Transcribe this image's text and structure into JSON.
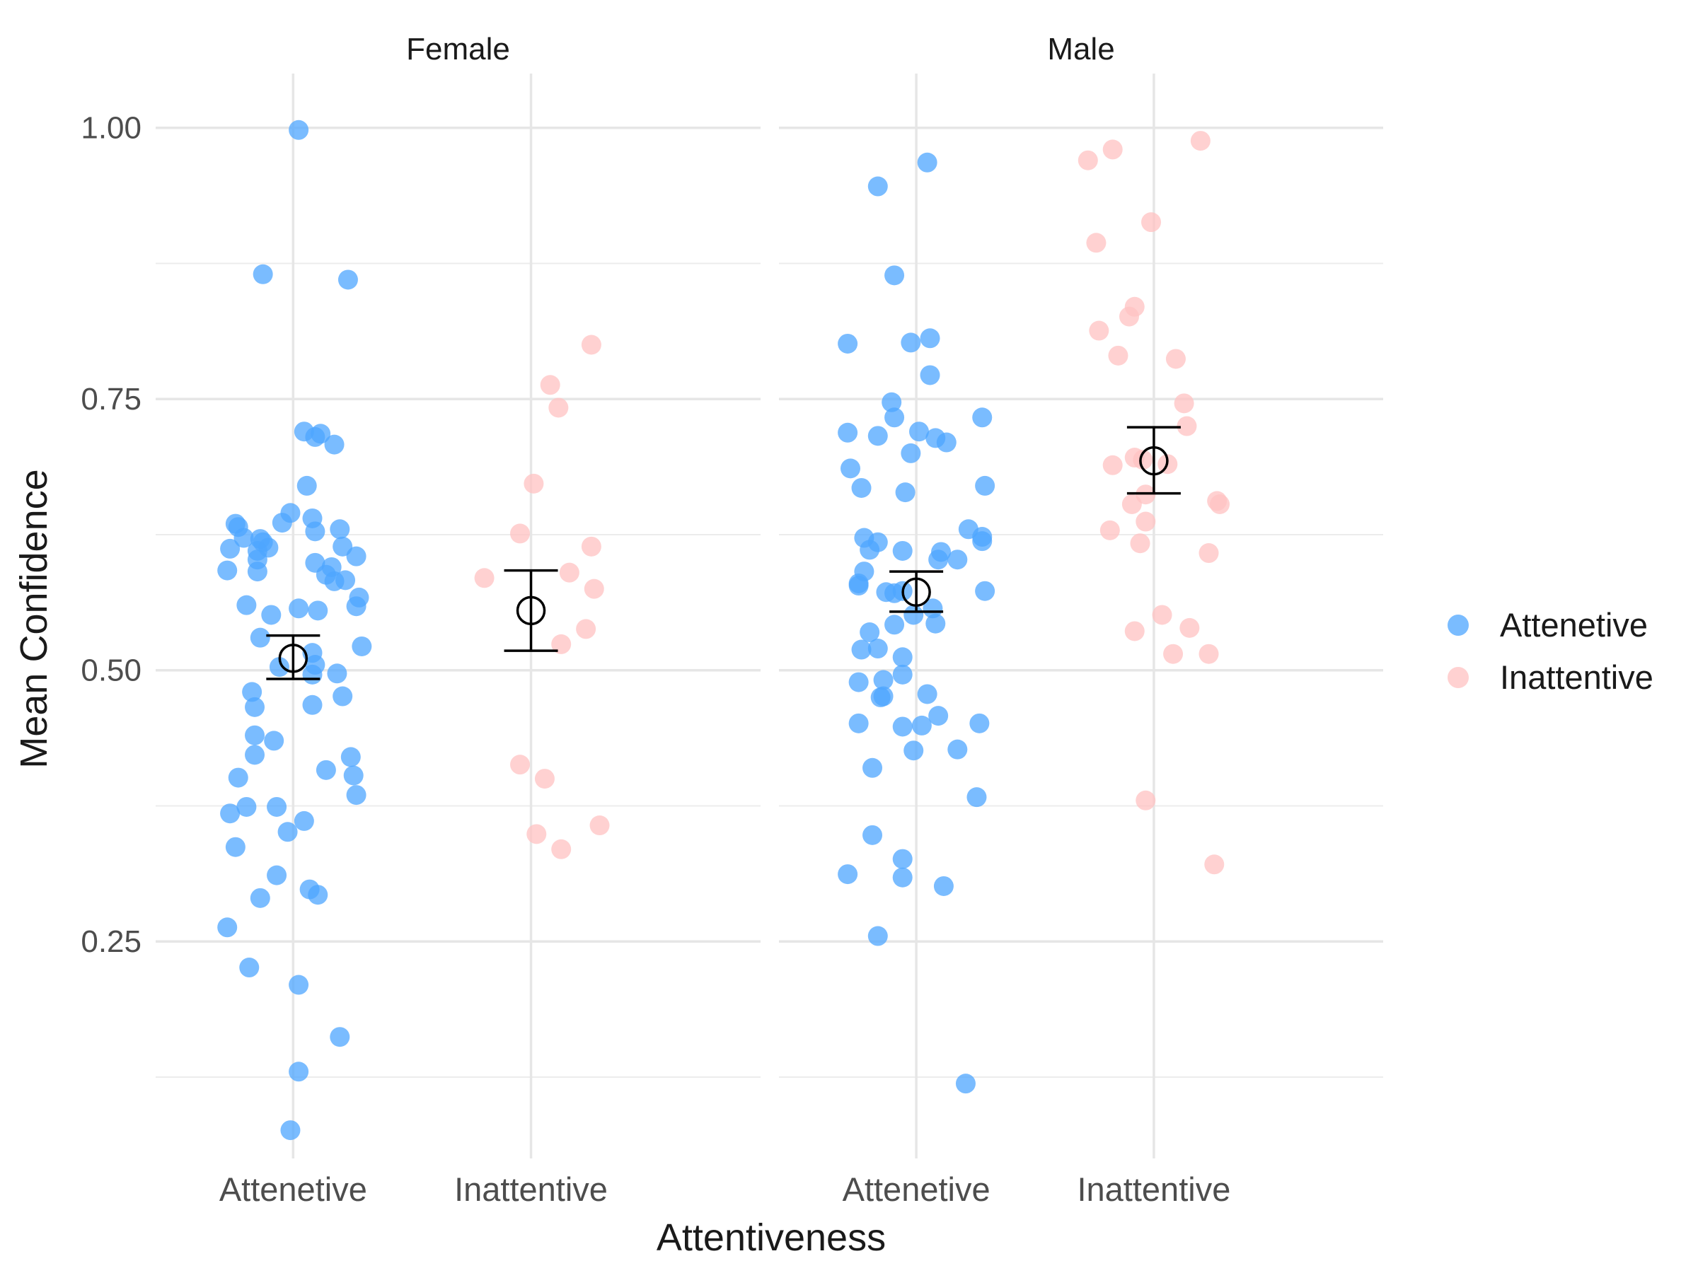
{
  "chart_data": {
    "type": "scatter",
    "xlabel": "Attentiveness",
    "ylabel": "Mean Confidence",
    "ylim": [
      0.05,
      1.05
    ],
    "yticks": [
      0.25,
      0.5,
      0.75,
      1.0
    ],
    "ytick_labels": [
      "0.25",
      "0.50",
      "0.75",
      "1.00"
    ],
    "categories": [
      "Attenetive",
      "Inattentive"
    ],
    "grid": true,
    "legend_position": "right",
    "colors": {
      "Attenetive": "#4da6ff",
      "Inattentive": "#ffc2c2"
    },
    "legend": [
      {
        "label": "Attenetive",
        "color": "#4da6ff"
      },
      {
        "label": "Inattentive",
        "color": "#ffc2c2"
      }
    ],
    "facets": [
      {
        "label": "Female",
        "groups": [
          {
            "category": "Attenetive",
            "mean": 0.511,
            "error_low": 0.492,
            "error_high": 0.532,
            "points": [
              {
                "x": 0.02,
                "y": 0.998
              },
              {
                "x": -0.11,
                "y": 0.865
              },
              {
                "x": 0.2,
                "y": 0.86
              },
              {
                "x": 0.04,
                "y": 0.72
              },
              {
                "x": 0.08,
                "y": 0.715
              },
              {
                "x": 0.1,
                "y": 0.718
              },
              {
                "x": 0.15,
                "y": 0.708
              },
              {
                "x": 0.05,
                "y": 0.67
              },
              {
                "x": -0.01,
                "y": 0.645
              },
              {
                "x": 0.07,
                "y": 0.64
              },
              {
                "x": -0.04,
                "y": 0.636
              },
              {
                "x": -0.2,
                "y": 0.632
              },
              {
                "x": -0.21,
                "y": 0.635
              },
              {
                "x": 0.17,
                "y": 0.63
              },
              {
                "x": 0.08,
                "y": 0.628
              },
              {
                "x": -0.18,
                "y": 0.622
              },
              {
                "x": -0.12,
                "y": 0.621
              },
              {
                "x": -0.11,
                "y": 0.618
              },
              {
                "x": 0.18,
                "y": 0.614
              },
              {
                "x": -0.09,
                "y": 0.613
              },
              {
                "x": -0.23,
                "y": 0.612
              },
              {
                "x": -0.13,
                "y": 0.61
              },
              {
                "x": 0.23,
                "y": 0.605
              },
              {
                "x": -0.13,
                "y": 0.602
              },
              {
                "x": 0.08,
                "y": 0.599
              },
              {
                "x": 0.14,
                "y": 0.595
              },
              {
                "x": -0.24,
                "y": 0.592
              },
              {
                "x": -0.13,
                "y": 0.591
              },
              {
                "x": 0.12,
                "y": 0.588
              },
              {
                "x": 0.19,
                "y": 0.583
              },
              {
                "x": 0.15,
                "y": 0.582
              },
              {
                "x": 0.24,
                "y": 0.567
              },
              {
                "x": -0.17,
                "y": 0.56
              },
              {
                "x": 0.23,
                "y": 0.559
              },
              {
                "x": 0.02,
                "y": 0.557
              },
              {
                "x": 0.09,
                "y": 0.555
              },
              {
                "x": -0.08,
                "y": 0.551
              },
              {
                "x": -0.12,
                "y": 0.53
              },
              {
                "x": 0.25,
                "y": 0.522
              },
              {
                "x": 0.07,
                "y": 0.516
              },
              {
                "x": 0.08,
                "y": 0.505
              },
              {
                "x": -0.05,
                "y": 0.503
              },
              {
                "x": 0.07,
                "y": 0.496
              },
              {
                "x": 0.16,
                "y": 0.497
              },
              {
                "x": -0.15,
                "y": 0.48
              },
              {
                "x": 0.18,
                "y": 0.476
              },
              {
                "x": -0.14,
                "y": 0.466
              },
              {
                "x": 0.07,
                "y": 0.468
              },
              {
                "x": -0.14,
                "y": 0.44
              },
              {
                "x": -0.07,
                "y": 0.435
              },
              {
                "x": -0.14,
                "y": 0.422
              },
              {
                "x": 0.21,
                "y": 0.42
              },
              {
                "x": 0.12,
                "y": 0.408
              },
              {
                "x": 0.22,
                "y": 0.403
              },
              {
                "x": -0.2,
                "y": 0.401
              },
              {
                "x": 0.23,
                "y": 0.385
              },
              {
                "x": -0.17,
                "y": 0.374
              },
              {
                "x": -0.06,
                "y": 0.374
              },
              {
                "x": -0.23,
                "y": 0.368
              },
              {
                "x": 0.04,
                "y": 0.361
              },
              {
                "x": -0.02,
                "y": 0.351
              },
              {
                "x": -0.21,
                "y": 0.337
              },
              {
                "x": -0.06,
                "y": 0.311
              },
              {
                "x": 0.06,
                "y": 0.298
              },
              {
                "x": 0.09,
                "y": 0.293
              },
              {
                "x": -0.12,
                "y": 0.29
              },
              {
                "x": -0.24,
                "y": 0.263
              },
              {
                "x": -0.16,
                "y": 0.226
              },
              {
                "x": 0.02,
                "y": 0.21
              },
              {
                "x": 0.17,
                "y": 0.162
              },
              {
                "x": 0.02,
                "y": 0.13
              },
              {
                "x": -0.01,
                "y": 0.076
              }
            ]
          },
          {
            "category": "Inattentive",
            "mean": 0.555,
            "error_low": 0.518,
            "error_high": 0.592,
            "points": [
              {
                "x": 0.22,
                "y": 0.8
              },
              {
                "x": 0.07,
                "y": 0.763
              },
              {
                "x": 0.1,
                "y": 0.742
              },
              {
                "x": 0.01,
                "y": 0.672
              },
              {
                "x": -0.04,
                "y": 0.626
              },
              {
                "x": 0.22,
                "y": 0.614
              },
              {
                "x": 0.14,
                "y": 0.59
              },
              {
                "x": -0.17,
                "y": 0.585
              },
              {
                "x": 0.23,
                "y": 0.575
              },
              {
                "x": 0.2,
                "y": 0.538
              },
              {
                "x": 0.11,
                "y": 0.524
              },
              {
                "x": -0.04,
                "y": 0.413
              },
              {
                "x": 0.05,
                "y": 0.4
              },
              {
                "x": 0.25,
                "y": 0.357
              },
              {
                "x": 0.02,
                "y": 0.349
              },
              {
                "x": 0.11,
                "y": 0.335
              }
            ]
          }
        ]
      },
      {
        "label": "Male",
        "groups": [
          {
            "category": "Attenetive",
            "mean": 0.572,
            "error_low": 0.554,
            "error_high": 0.591,
            "points": [
              {
                "x": 0.04,
                "y": 0.968
              },
              {
                "x": -0.14,
                "y": 0.946
              },
              {
                "x": -0.08,
                "y": 0.864
              },
              {
                "x": -0.25,
                "y": 0.801
              },
              {
                "x": 0.05,
                "y": 0.806
              },
              {
                "x": -0.02,
                "y": 0.802
              },
              {
                "x": 0.05,
                "y": 0.772
              },
              {
                "x": -0.09,
                "y": 0.747
              },
              {
                "x": 0.24,
                "y": 0.733
              },
              {
                "x": -0.08,
                "y": 0.733
              },
              {
                "x": 0.01,
                "y": 0.72
              },
              {
                "x": -0.25,
                "y": 0.719
              },
              {
                "x": -0.14,
                "y": 0.716
              },
              {
                "x": 0.07,
                "y": 0.714
              },
              {
                "x": 0.11,
                "y": 0.71
              },
              {
                "x": -0.02,
                "y": 0.7
              },
              {
                "x": -0.24,
                "y": 0.686
              },
              {
                "x": 0.25,
                "y": 0.67
              },
              {
                "x": -0.2,
                "y": 0.668
              },
              {
                "x": -0.04,
                "y": 0.664
              },
              {
                "x": 0.19,
                "y": 0.63
              },
              {
                "x": 0.24,
                "y": 0.623
              },
              {
                "x": -0.19,
                "y": 0.622
              },
              {
                "x": 0.24,
                "y": 0.619
              },
              {
                "x": -0.14,
                "y": 0.618
              },
              {
                "x": -0.17,
                "y": 0.611
              },
              {
                "x": -0.05,
                "y": 0.61
              },
              {
                "x": 0.09,
                "y": 0.609
              },
              {
                "x": 0.15,
                "y": 0.602
              },
              {
                "x": 0.08,
                "y": 0.602
              },
              {
                "x": -0.19,
                "y": 0.591
              },
              {
                "x": -0.21,
                "y": 0.58
              },
              {
                "x": -0.21,
                "y": 0.578
              },
              {
                "x": -0.11,
                "y": 0.572
              },
              {
                "x": 0.25,
                "y": 0.573
              },
              {
                "x": -0.08,
                "y": 0.571
              },
              {
                "x": -0.05,
                "y": 0.573
              },
              {
                "x": 0.06,
                "y": 0.557
              },
              {
                "x": -0.01,
                "y": 0.551
              },
              {
                "x": 0.07,
                "y": 0.543
              },
              {
                "x": -0.08,
                "y": 0.542
              },
              {
                "x": -0.17,
                "y": 0.535
              },
              {
                "x": -0.14,
                "y": 0.52
              },
              {
                "x": -0.2,
                "y": 0.519
              },
              {
                "x": -0.05,
                "y": 0.512
              },
              {
                "x": -0.05,
                "y": 0.496
              },
              {
                "x": -0.21,
                "y": 0.489
              },
              {
                "x": -0.12,
                "y": 0.491
              },
              {
                "x": 0.04,
                "y": 0.478
              },
              {
                "x": -0.12,
                "y": 0.476
              },
              {
                "x": -0.13,
                "y": 0.475
              },
              {
                "x": 0.08,
                "y": 0.458
              },
              {
                "x": -0.21,
                "y": 0.451
              },
              {
                "x": 0.23,
                "y": 0.451
              },
              {
                "x": -0.05,
                "y": 0.448
              },
              {
                "x": 0.02,
                "y": 0.449
              },
              {
                "x": 0.15,
                "y": 0.427
              },
              {
                "x": -0.01,
                "y": 0.426
              },
              {
                "x": -0.16,
                "y": 0.41
              },
              {
                "x": 0.22,
                "y": 0.383
              },
              {
                "x": -0.16,
                "y": 0.348
              },
              {
                "x": -0.05,
                "y": 0.326
              },
              {
                "x": -0.25,
                "y": 0.312
              },
              {
                "x": -0.05,
                "y": 0.309
              },
              {
                "x": 0.1,
                "y": 0.301
              },
              {
                "x": -0.14,
                "y": 0.255
              },
              {
                "x": 0.18,
                "y": 0.119
              }
            ]
          },
          {
            "category": "Inattentive",
            "mean": 0.693,
            "error_low": 0.663,
            "error_high": 0.724,
            "points": [
              {
                "x": 0.17,
                "y": 0.988
              },
              {
                "x": -0.15,
                "y": 0.98
              },
              {
                "x": -0.24,
                "y": 0.97
              },
              {
                "x": -0.01,
                "y": 0.913
              },
              {
                "x": -0.21,
                "y": 0.894
              },
              {
                "x": -0.07,
                "y": 0.835
              },
              {
                "x": -0.09,
                "y": 0.826
              },
              {
                "x": -0.2,
                "y": 0.813
              },
              {
                "x": -0.13,
                "y": 0.79
              },
              {
                "x": 0.08,
                "y": 0.787
              },
              {
                "x": 0.11,
                "y": 0.746
              },
              {
                "x": 0.12,
                "y": 0.725
              },
              {
                "x": -0.07,
                "y": 0.696
              },
              {
                "x": -0.04,
                "y": 0.694
              },
              {
                "x": 0.05,
                "y": 0.69
              },
              {
                "x": -0.15,
                "y": 0.689
              },
              {
                "x": -0.03,
                "y": 0.662
              },
              {
                "x": 0.23,
                "y": 0.656
              },
              {
                "x": 0.24,
                "y": 0.653
              },
              {
                "x": -0.08,
                "y": 0.653
              },
              {
                "x": -0.03,
                "y": 0.637
              },
              {
                "x": -0.16,
                "y": 0.629
              },
              {
                "x": -0.05,
                "y": 0.617
              },
              {
                "x": 0.2,
                "y": 0.608
              },
              {
                "x": 0.03,
                "y": 0.551
              },
              {
                "x": 0.13,
                "y": 0.539
              },
              {
                "x": -0.07,
                "y": 0.536
              },
              {
                "x": 0.07,
                "y": 0.515
              },
              {
                "x": 0.2,
                "y": 0.515
              },
              {
                "x": -0.03,
                "y": 0.38
              },
              {
                "x": 0.22,
                "y": 0.321
              }
            ]
          }
        ]
      }
    ]
  }
}
